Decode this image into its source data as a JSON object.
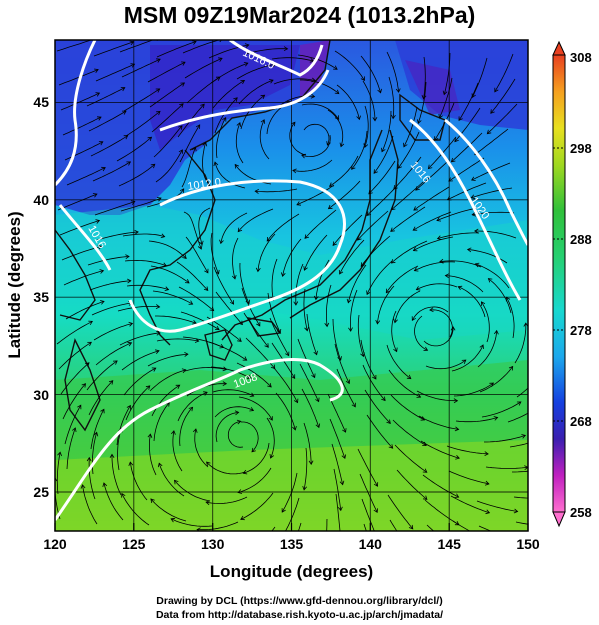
{
  "title": "MSM 09Z19Mar2024 (1013.2hPa)",
  "map": {
    "xlabel": "Longitude (degrees)",
    "ylabel": "Latitude  (degrees)",
    "x_ticks": [
      "120",
      "125",
      "130",
      "135",
      "140",
      "145",
      "150"
    ],
    "y_ticks": [
      "25",
      "30",
      "35",
      "40",
      "45"
    ],
    "xlim": [
      120,
      150
    ],
    "ylim": [
      22.4,
      47.6
    ],
    "isobars": [
      {
        "label": "1016.0"
      },
      {
        "label": "1012.0"
      },
      {
        "label": "1008"
      },
      {
        "label": "1016"
      },
      {
        "label": "1016"
      },
      {
        "label": "1020"
      }
    ],
    "streamline_color": "#000000",
    "contour_color": "#ffffff"
  },
  "colorbar": {
    "ticks": [
      "308",
      "298",
      "288",
      "278",
      "268",
      "258"
    ],
    "range": [
      258,
      308
    ],
    "colors": [
      "#ff6fcf",
      "#c020c0",
      "#3a1fb0",
      "#1540e0",
      "#1ca8ec",
      "#18d8d0",
      "#26d070",
      "#30c03a",
      "#a0d820",
      "#e8e020",
      "#f5a020",
      "#e84020"
    ]
  },
  "credits": {
    "line1": "Drawing by DCL (https://www.gfd-dennou.org/library/dcl/)",
    "line2": "Data from http://database.rish.kyoto-u.ac.jp/arch/jmadata/"
  }
}
